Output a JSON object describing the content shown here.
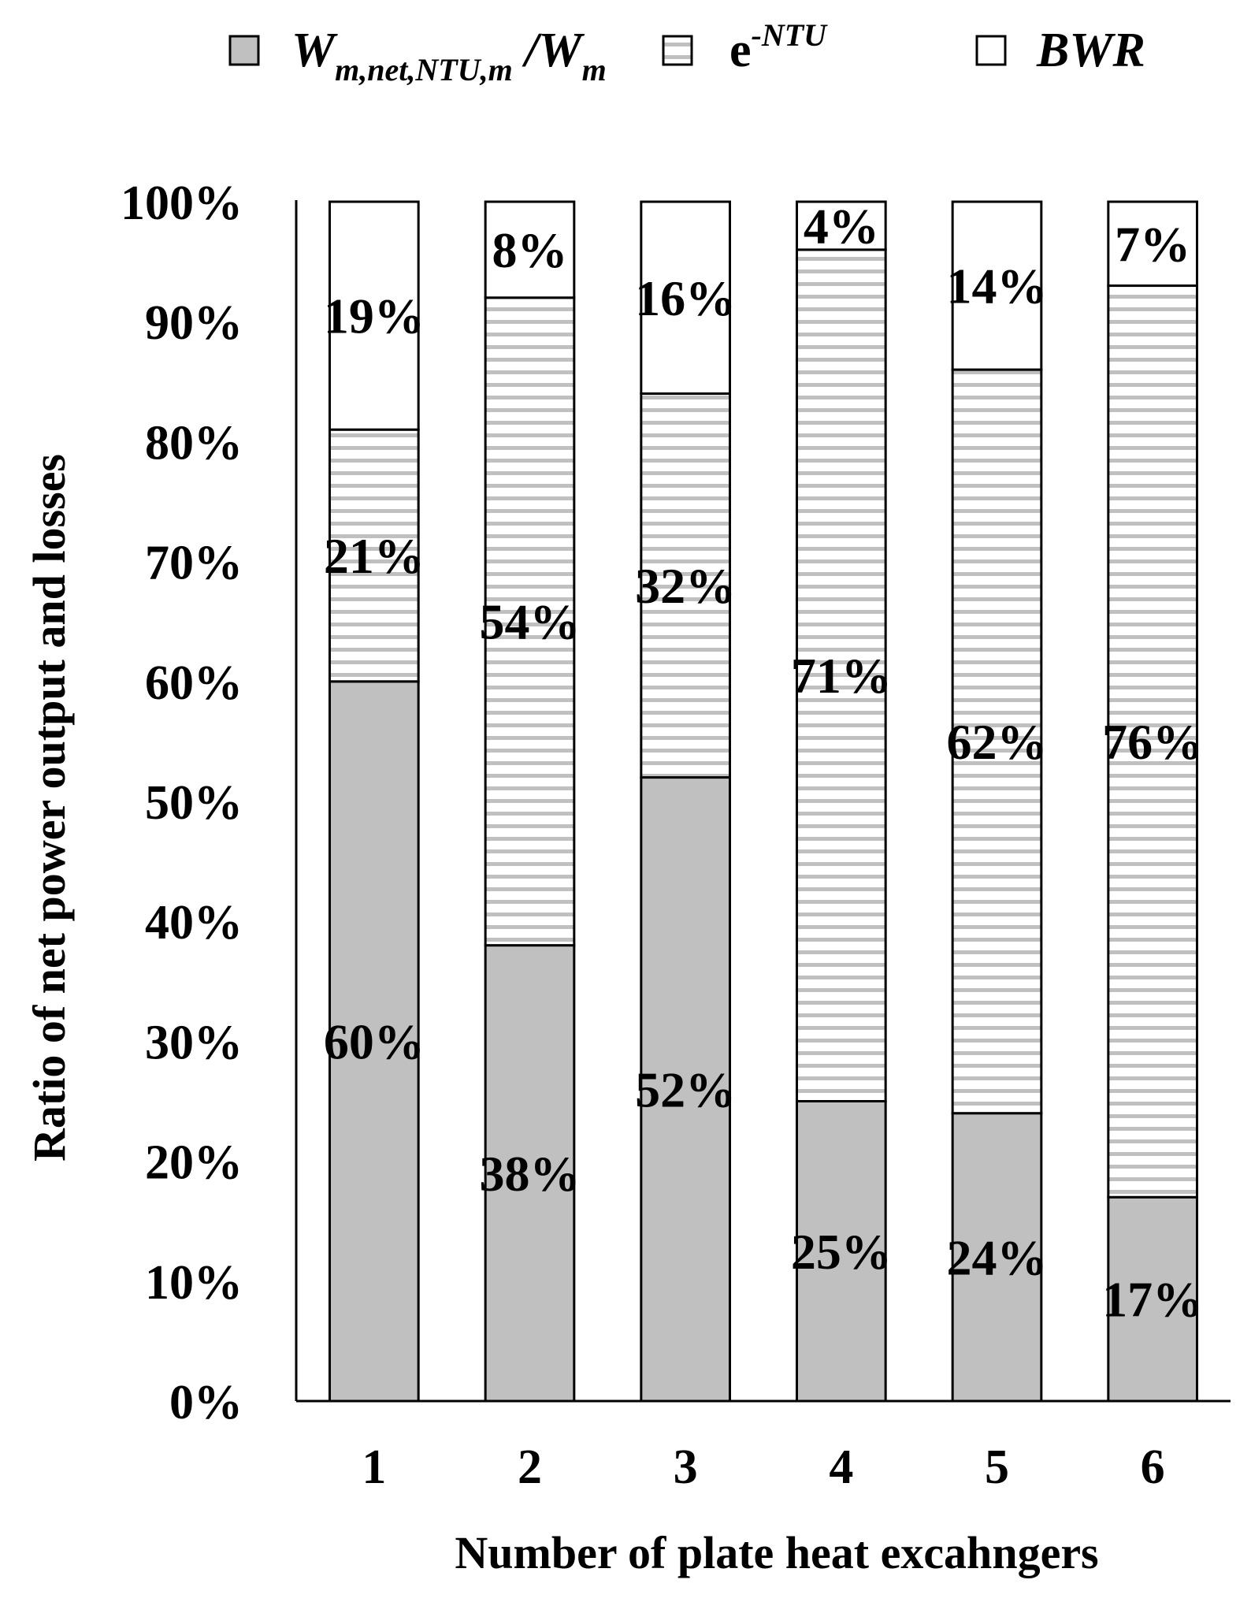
{
  "chart_data": {
    "type": "bar",
    "stacked": true,
    "percent": true,
    "categories": [
      "1",
      "2",
      "3",
      "4",
      "5",
      "6"
    ],
    "series": [
      {
        "name": "W_m,net,NTU,m/W_m",
        "label_main": "W",
        "label_sub": "m,net,NTU,m",
        "label_sep": " /",
        "label_main2": "W",
        "label_sub2": "m",
        "pattern": "solid-gray",
        "color": "#c0c0c0",
        "values": [
          60,
          38,
          52,
          25,
          24,
          17
        ],
        "labels": [
          "60%",
          "38%",
          "52%",
          "25%",
          "24%",
          "17%"
        ]
      },
      {
        "name": "e^-NTU",
        "label_main": "e",
        "label_sup": "-NTU",
        "pattern": "horizontal-stripes",
        "color": "#c0c0c0",
        "values": [
          21,
          54,
          32,
          71,
          62,
          76
        ],
        "labels": [
          "21%",
          "54%",
          "32%",
          "71%",
          "62%",
          "76%"
        ]
      },
      {
        "name": "BWR",
        "label_main": "BWR",
        "pattern": "white",
        "color": "#ffffff",
        "values": [
          19,
          8,
          16,
          4,
          14,
          7
        ],
        "labels": [
          "19%",
          "8%",
          "16%",
          "4%",
          "14%",
          "7%"
        ]
      }
    ],
    "xlabel": "Number of plate heat excahngers",
    "ylabel": "Ratio of net power output and losses",
    "ylim": [
      0,
      100
    ],
    "yticks": [
      "0%",
      "10%",
      "20%",
      "30%",
      "40%",
      "50%",
      "60%",
      "70%",
      "80%",
      "90%",
      "100%"
    ],
    "grid": false,
    "legend": "top"
  }
}
